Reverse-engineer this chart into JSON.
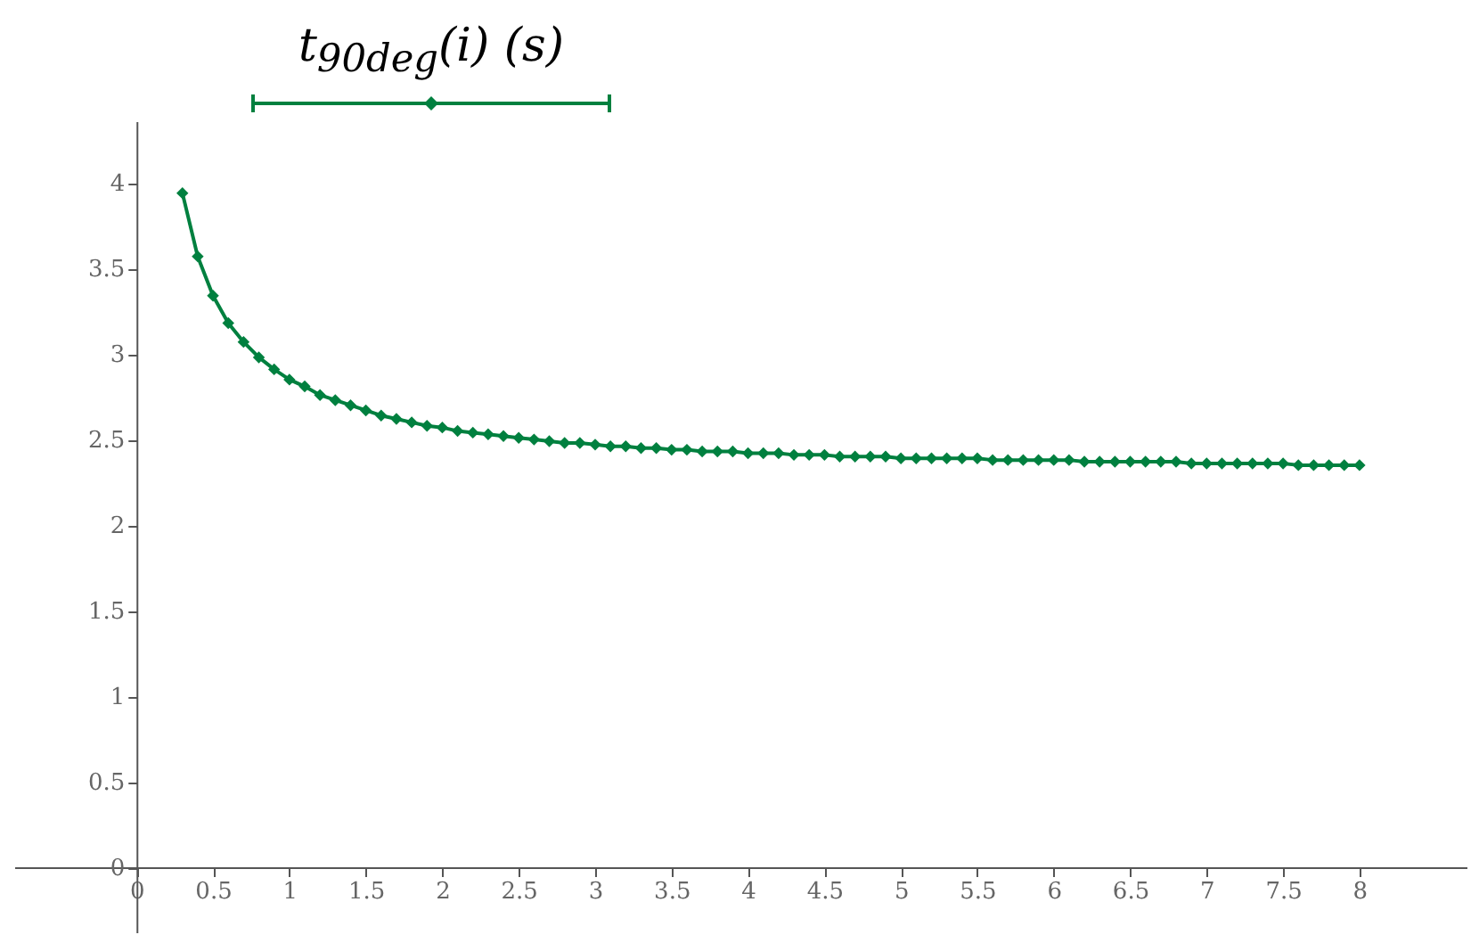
{
  "chart_data": {
    "type": "line",
    "marker": "diamond",
    "legend": "top",
    "grid": false,
    "x": [
      0.3,
      0.4,
      0.5,
      0.6,
      0.7,
      0.8,
      0.9,
      1.0,
      1.1,
      1.2,
      1.3,
      1.4,
      1.5,
      1.6,
      1.7,
      1.8,
      1.9,
      2.0,
      2.1,
      2.2,
      2.3,
      2.4,
      2.5,
      2.6,
      2.7,
      2.8,
      2.9,
      3.0,
      3.1,
      3.2,
      3.3,
      3.4,
      3.5,
      3.6,
      3.7,
      3.8,
      3.9,
      4.0,
      4.1,
      4.2,
      4.3,
      4.4,
      4.5,
      4.6,
      4.7,
      4.8,
      4.9,
      5.0,
      5.1,
      5.2,
      5.3,
      5.4,
      5.5,
      5.6,
      5.7,
      5.8,
      5.9,
      6.0,
      6.1,
      6.2,
      6.3,
      6.4,
      6.5,
      6.6,
      6.7,
      6.8,
      6.9,
      7.0,
      7.1,
      7.2,
      7.3,
      7.4,
      7.5,
      7.6,
      7.7,
      7.8,
      7.9,
      8.0
    ],
    "series": [
      {
        "name": "t$_{90deg}$(i) (s)",
        "color": "#00803f",
        "values": [
          3.94,
          3.57,
          3.34,
          3.18,
          3.07,
          2.98,
          2.91,
          2.85,
          2.81,
          2.76,
          2.73,
          2.7,
          2.67,
          2.64,
          2.62,
          2.6,
          2.58,
          2.57,
          2.55,
          2.54,
          2.53,
          2.52,
          2.51,
          2.5,
          2.49,
          2.48,
          2.48,
          2.47,
          2.46,
          2.46,
          2.45,
          2.45,
          2.44,
          2.44,
          2.43,
          2.43,
          2.43,
          2.42,
          2.42,
          2.42,
          2.41,
          2.41,
          2.41,
          2.4,
          2.4,
          2.4,
          2.4,
          2.39,
          2.39,
          2.39,
          2.39,
          2.39,
          2.39,
          2.38,
          2.38,
          2.38,
          2.38,
          2.38,
          2.38,
          2.37,
          2.37,
          2.37,
          2.37,
          2.37,
          2.37,
          2.37,
          2.36,
          2.36,
          2.36,
          2.36,
          2.36,
          2.36,
          2.36,
          2.35,
          2.35,
          2.35,
          2.35,
          2.35
        ]
      }
    ],
    "xlim": [
      -0.8,
      8.7
    ],
    "ylim": [
      -0.38,
      4.36
    ],
    "xticks": [
      0,
      0.5,
      1,
      1.5,
      2,
      2.5,
      3,
      3.5,
      4,
      4.5,
      5,
      5.5,
      6,
      6.5,
      7,
      7.5,
      8
    ],
    "yticks": [
      0,
      0.5,
      1,
      1.5,
      2,
      2.5,
      3,
      3.5,
      4
    ]
  }
}
